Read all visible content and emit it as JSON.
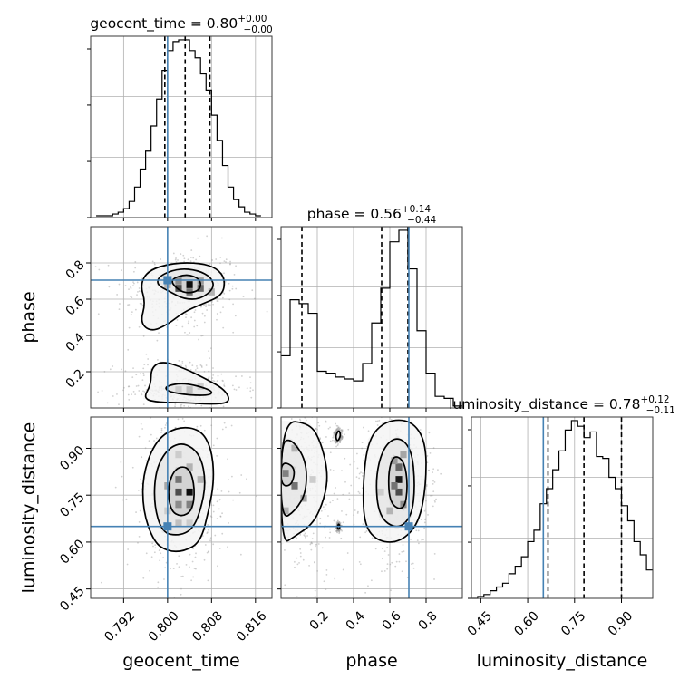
{
  "chart_data": {
    "type": "corner",
    "colors": {
      "truth": "#4682b4",
      "line": "#000000",
      "grid": "#b0b0b0",
      "samples": "#9a9a9a"
    },
    "parameters": [
      {
        "key": "geocent_time",
        "label": "geocent_time",
        "title_name": "geocent_time",
        "median": "0.80",
        "plus": "+0.00",
        "minus": "−0.00",
        "range": [
          0.786,
          0.819
        ],
        "ticks": [
          0.792,
          0.8,
          0.808,
          0.816
        ],
        "tick_labels": [
          "0.792",
          "0.800",
          "0.808",
          "0.816"
        ],
        "quantiles": [
          0.7995,
          0.8032,
          0.8077
        ],
        "truth": 0.8,
        "hist_edges": [
          0.787,
          0.788,
          0.789,
          0.79,
          0.791,
          0.792,
          0.793,
          0.794,
          0.795,
          0.796,
          0.797,
          0.798,
          0.799,
          0.8,
          0.801,
          0.802,
          0.803,
          0.804,
          0.805,
          0.806,
          0.807,
          0.808,
          0.809,
          0.81,
          0.811,
          0.812,
          0.813,
          0.814,
          0.815,
          0.816,
          0.817
        ],
        "hist_values": [
          0.01,
          0.01,
          0.01,
          0.02,
          0.03,
          0.05,
          0.09,
          0.17,
          0.27,
          0.37,
          0.51,
          0.66,
          0.82,
          0.93,
          0.98,
          0.99,
          0.99,
          0.93,
          0.89,
          0.8,
          0.71,
          0.57,
          0.43,
          0.29,
          0.17,
          0.1,
          0.06,
          0.03,
          0.02,
          0.01
        ]
      },
      {
        "key": "phase",
        "label": "phase",
        "title_name": "phase",
        "median": "0.56",
        "plus": "+0.14",
        "minus": "−0.44",
        "range": [
          0.0,
          1.0
        ],
        "ticks": [
          0.2,
          0.4,
          0.6,
          0.8
        ],
        "tick_labels": [
          "0.2",
          "0.4",
          "0.6",
          "0.8"
        ],
        "quantiles": [
          0.115,
          0.555,
          0.7
        ],
        "truth": 0.705,
        "hist_edges": [
          0.0,
          0.05,
          0.1,
          0.15,
          0.2,
          0.25,
          0.3,
          0.35,
          0.4,
          0.45,
          0.5,
          0.55,
          0.6,
          0.65,
          0.7,
          0.75,
          0.8,
          0.85,
          0.9,
          0.95,
          1.0
        ],
        "hist_values": [
          0.27,
          0.56,
          0.54,
          0.49,
          0.19,
          0.18,
          0.16,
          0.15,
          0.14,
          0.23,
          0.44,
          0.62,
          0.86,
          0.92,
          0.72,
          0.4,
          0.18,
          0.06,
          0.05,
          0.01
        ]
      },
      {
        "key": "luminosity_distance",
        "label": "luminosity_distance",
        "title_name": "luminosity_distance",
        "median": "0.78",
        "plus": "+0.12",
        "minus": "−0.11",
        "range": [
          0.42,
          1.0
        ],
        "ticks": [
          0.45,
          0.6,
          0.75,
          0.9
        ],
        "tick_labels": [
          "0.45",
          "0.60",
          "0.75",
          "0.90"
        ],
        "quantiles": [
          0.665,
          0.78,
          0.9
        ],
        "truth": 0.65,
        "hist_edges": [
          0.42,
          0.44,
          0.46,
          0.48,
          0.5,
          0.52,
          0.54,
          0.56,
          0.58,
          0.6,
          0.62,
          0.64,
          0.66,
          0.68,
          0.7,
          0.72,
          0.74,
          0.76,
          0.78,
          0.8,
          0.82,
          0.84,
          0.86,
          0.88,
          0.9,
          0.92,
          0.94,
          0.96,
          0.98,
          1.0
        ],
        "hist_values": [
          0.0,
          0.01,
          0.02,
          0.04,
          0.06,
          0.08,
          0.13,
          0.17,
          0.22,
          0.3,
          0.36,
          0.5,
          0.58,
          0.68,
          0.78,
          0.89,
          0.94,
          0.91,
          0.85,
          0.88,
          0.75,
          0.74,
          0.64,
          0.58,
          0.49,
          0.41,
          0.3,
          0.23,
          0.15
        ]
      }
    ],
    "panels_2d": [
      {
        "x": "geocent_time",
        "y": "phase",
        "levels": [
          [
            [
              0.7965,
              0.76
            ],
            [
              0.801,
              0.8
            ],
            [
              0.806,
              0.8
            ],
            [
              0.809,
              0.77
            ],
            [
              0.8105,
              0.71
            ],
            [
              0.81,
              0.62
            ],
            [
              0.806,
              0.57
            ],
            [
              0.803,
              0.53
            ],
            [
              0.8,
              0.46
            ],
            [
              0.797,
              0.42
            ],
            [
              0.795,
              0.47
            ],
            [
              0.796,
              0.58
            ],
            [
              0.795,
              0.68
            ]
          ],
          [
            [
              0.7985,
              0.73
            ],
            [
              0.802,
              0.77
            ],
            [
              0.8055,
              0.76
            ],
            [
              0.808,
              0.72
            ],
            [
              0.8085,
              0.66
            ],
            [
              0.806,
              0.6
            ],
            [
              0.803,
              0.6
            ],
            [
              0.8005,
              0.64
            ],
            [
              0.798,
              0.68
            ]
          ],
          [
            [
              0.8005,
              0.71
            ],
            [
              0.8035,
              0.74
            ],
            [
              0.806,
              0.71
            ],
            [
              0.806,
              0.65
            ],
            [
              0.8035,
              0.63
            ],
            [
              0.8015,
              0.66
            ]
          ],
          [
            [
              0.7955,
              0.05
            ],
            [
              0.797,
              0.13
            ],
            [
              0.797,
              0.22
            ],
            [
              0.799,
              0.26
            ],
            [
              0.803,
              0.22
            ],
            [
              0.807,
              0.16
            ],
            [
              0.8105,
              0.1
            ],
            [
              0.8115,
              0.03
            ],
            [
              0.808,
              0.02
            ],
            [
              0.803,
              0.03
            ],
            [
              0.7985,
              0.03
            ]
          ],
          [
            [
              0.7995,
              0.12
            ],
            [
              0.803,
              0.14
            ],
            [
              0.808,
              0.1
            ],
            [
              0.808,
              0.07
            ],
            [
              0.804,
              0.07
            ],
            [
              0.8,
              0.09
            ]
          ]
        ],
        "density_cells": [
          [
            0.804,
            0.68,
            0.95
          ],
          [
            0.802,
            0.66,
            0.7
          ],
          [
            0.806,
            0.66,
            0.6
          ],
          [
            0.804,
            0.64,
            0.55
          ],
          [
            0.802,
            0.7,
            0.45
          ],
          [
            0.806,
            0.7,
            0.4
          ],
          [
            0.808,
            0.64,
            0.3
          ],
          [
            0.8,
            0.68,
            0.3
          ],
          [
            0.804,
            0.1,
            0.25
          ],
          [
            0.802,
            0.1,
            0.2
          ],
          [
            0.806,
            0.12,
            0.2
          ]
        ],
        "truth": [
          0.8,
          0.705
        ]
      },
      {
        "x": "geocent_time",
        "y": "luminosity_distance",
        "levels": [
          [
            [
              0.7975,
              0.6
            ],
            [
              0.7955,
              0.7
            ],
            [
              0.7955,
              0.82
            ],
            [
              0.798,
              0.93
            ],
            [
              0.802,
              0.97
            ],
            [
              0.806,
              0.96
            ],
            [
              0.808,
              0.9
            ],
            [
              0.8085,
              0.8
            ],
            [
              0.8075,
              0.7
            ],
            [
              0.806,
              0.6
            ],
            [
              0.803,
              0.57
            ],
            [
              0.8,
              0.57
            ]
          ],
          [
            [
              0.799,
              0.63
            ],
            [
              0.7975,
              0.72
            ],
            [
              0.7978,
              0.83
            ],
            [
              0.8,
              0.9
            ],
            [
              0.803,
              0.92
            ],
            [
              0.806,
              0.88
            ],
            [
              0.807,
              0.79
            ],
            [
              0.806,
              0.7
            ],
            [
              0.8045,
              0.64
            ],
            [
              0.802,
              0.62
            ]
          ],
          [
            [
              0.8005,
              0.7
            ],
            [
              0.8,
              0.78
            ],
            [
              0.8015,
              0.84
            ],
            [
              0.804,
              0.84
            ],
            [
              0.805,
              0.77
            ],
            [
              0.8045,
              0.7
            ],
            [
              0.8025,
              0.68
            ]
          ]
        ],
        "density_cells": [
          [
            0.804,
            0.76,
            0.95
          ],
          [
            0.802,
            0.76,
            0.7
          ],
          [
            0.802,
            0.8,
            0.55
          ],
          [
            0.804,
            0.72,
            0.5
          ],
          [
            0.802,
            0.72,
            0.45
          ],
          [
            0.8,
            0.78,
            0.35
          ],
          [
            0.806,
            0.8,
            0.3
          ],
          [
            0.804,
            0.84,
            0.3
          ],
          [
            0.802,
            0.66,
            0.25
          ],
          [
            0.8,
            0.7,
            0.2
          ],
          [
            0.804,
            0.66,
            0.2
          ],
          [
            0.802,
            0.88,
            0.2
          ]
        ],
        "truth": [
          0.8,
          0.65
        ]
      },
      {
        "x": "phase",
        "y": "luminosity_distance",
        "levels": [
          [
            [
              0.0,
              0.59
            ],
            [
              0.08,
              0.62
            ],
            [
              0.18,
              0.66
            ],
            [
              0.24,
              0.74
            ],
            [
              0.26,
              0.82
            ],
            [
              0.22,
              0.92
            ],
            [
              0.16,
              0.98
            ],
            [
              0.0,
              0.99
            ]
          ],
          [
            [
              0.0,
              0.67
            ],
            [
              0.08,
              0.7
            ],
            [
              0.14,
              0.76
            ],
            [
              0.14,
              0.86
            ],
            [
              0.06,
              0.93
            ],
            [
              0.0,
              0.92
            ]
          ],
          [
            [
              0.0,
              0.78
            ],
            [
              0.06,
              0.78
            ],
            [
              0.08,
              0.84
            ],
            [
              0.0,
              0.86
            ]
          ],
          [
            [
              0.46,
              0.65
            ],
            [
              0.45,
              0.78
            ],
            [
              0.48,
              0.93
            ],
            [
              0.58,
              0.99
            ],
            [
              0.72,
              0.99
            ],
            [
              0.8,
              0.92
            ],
            [
              0.8,
              0.78
            ],
            [
              0.76,
              0.66
            ],
            [
              0.66,
              0.6
            ],
            [
              0.54,
              0.6
            ]
          ],
          [
            [
              0.54,
              0.68
            ],
            [
              0.52,
              0.8
            ],
            [
              0.56,
              0.9
            ],
            [
              0.64,
              0.94
            ],
            [
              0.72,
              0.9
            ],
            [
              0.74,
              0.78
            ],
            [
              0.72,
              0.68
            ],
            [
              0.64,
              0.64
            ]
          ],
          [
            [
              0.6,
              0.72
            ],
            [
              0.59,
              0.82
            ],
            [
              0.62,
              0.88
            ],
            [
              0.68,
              0.86
            ],
            [
              0.7,
              0.78
            ],
            [
              0.68,
              0.7
            ]
          ],
          [
            [
              0.3,
              0.94
            ],
            [
              0.32,
              0.96
            ],
            [
              0.33,
              0.94
            ],
            [
              0.31,
              0.92
            ]
          ],
          [
            [
              0.31,
              0.65
            ],
            [
              0.32,
              0.66
            ],
            [
              0.325,
              0.645
            ],
            [
              0.315,
              0.64
            ]
          ]
        ],
        "density_cells": [
          [
            0.65,
            0.8,
            0.9
          ],
          [
            0.65,
            0.76,
            0.7
          ],
          [
            0.65,
            0.84,
            0.6
          ],
          [
            0.625,
            0.78,
            0.55
          ],
          [
            0.675,
            0.72,
            0.45
          ],
          [
            0.625,
            0.86,
            0.4
          ],
          [
            0.675,
            0.88,
            0.35
          ],
          [
            0.6,
            0.7,
            0.3
          ],
          [
            0.075,
            0.78,
            0.55
          ],
          [
            0.025,
            0.82,
            0.5
          ],
          [
            0.125,
            0.74,
            0.35
          ],
          [
            0.075,
            0.9,
            0.3
          ],
          [
            0.025,
            0.7,
            0.3
          ],
          [
            0.175,
            0.8,
            0.2
          ],
          [
            0.55,
            0.76,
            0.2
          ]
        ],
        "truth": [
          0.705,
          0.65
        ]
      }
    ]
  }
}
